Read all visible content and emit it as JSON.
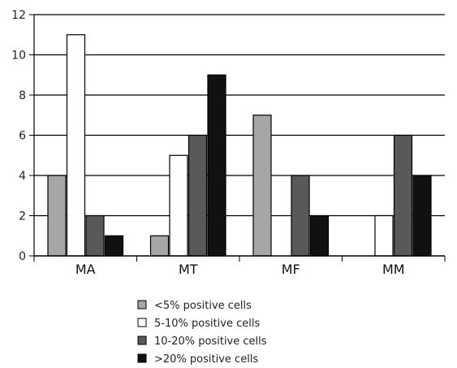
{
  "chart_data": {
    "type": "bar",
    "categories": [
      "MA",
      "MT",
      "MF",
      "MM"
    ],
    "series": [
      {
        "name": "<5% positive cells",
        "values": [
          4,
          1,
          7,
          0
        ],
        "color": "#a6a6a6"
      },
      {
        "name": "5-10% positive cells",
        "values": [
          11,
          5,
          0,
          2
        ],
        "color": "#ffffff"
      },
      {
        "name": "10-20% positive cells",
        "values": [
          2,
          6,
          4,
          6
        ],
        "color": "#595959"
      },
      {
        "name": ">20% positive cells",
        "values": [
          1,
          9,
          2,
          4
        ],
        "color": "#111111"
      }
    ],
    "title": "",
    "xlabel": "",
    "ylabel": "",
    "ylim": [
      0,
      12
    ],
    "yticks": [
      0,
      2,
      4,
      6,
      8,
      10,
      12
    ],
    "grid": true,
    "legend_position": "bottom"
  }
}
